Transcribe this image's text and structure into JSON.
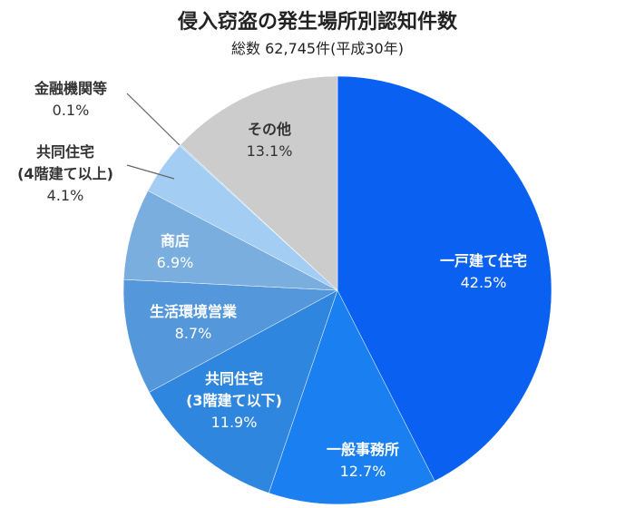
{
  "chart_data": {
    "type": "pie",
    "title": "侵入窃盗の発生場所別認知件数",
    "subtitle": "総数 62,745件(平成30年)",
    "categories": [
      "一戸建て住宅",
      "一般事務所",
      "共同住宅\n(3階建て以下)",
      "生活環境営業",
      "商店",
      "共同住宅\n(4階建て以上)",
      "金融機関等",
      "その他"
    ],
    "values": [
      42.5,
      12.7,
      11.9,
      8.7,
      6.9,
      4.1,
      0.1,
      13.1
    ],
    "value_labels": [
      "42.5%",
      "12.7%",
      "11.9%",
      "8.7%",
      "6.9%",
      "4.1%",
      "0.1%",
      "13.1%"
    ],
    "colors": [
      "#0a60f0",
      "#1a80f2",
      "#2e86de",
      "#5497da",
      "#79aede",
      "#a3cdf2",
      "#b3d6f2",
      "#cccccc"
    ]
  }
}
